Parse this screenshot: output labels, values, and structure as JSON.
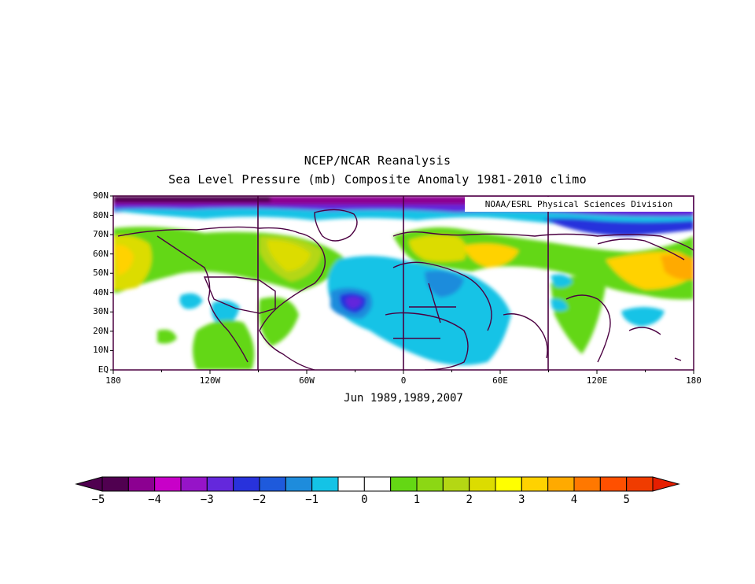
{
  "title": "NCEP/NCAR Reanalysis",
  "subtitle": "Sea Level Pressure (mb) Composite Anomaly 1981-2010 climo",
  "period_label": "Jun 1989,1989,2007",
  "credit": "NOAA/ESRL Physical Sciences Division",
  "lat_labels": [
    "90N",
    "80N",
    "70N",
    "60N",
    "50N",
    "40N",
    "30N",
    "20N",
    "10N",
    "EQ"
  ],
  "lon_labels": [
    "180",
    "120W",
    "60W",
    "0",
    "60E",
    "120E",
    "180"
  ],
  "colorbar": {
    "labels": [
      "-5",
      "-4",
      "-3",
      "-2",
      "-1",
      "0",
      "1",
      "2",
      "3",
      "4",
      "5"
    ],
    "colors": [
      "#500050",
      "#8c0091",
      "#c800c8",
      "#9614c8",
      "#6428dc",
      "#2832dc",
      "#1e5adc",
      "#1e8cdc",
      "#14c3e6",
      "#ffffff",
      "#ffffff",
      "#64d714",
      "#8cd714",
      "#b4d714",
      "#dcdc00",
      "#ffff00",
      "#ffd200",
      "#ffaa00",
      "#ff7800",
      "#ff5000",
      "#f03c00"
    ],
    "under_color": "#500050",
    "over_color": "#e61e00"
  },
  "colors": {
    "land_outline": "#4b0041",
    "frame": "#4b0041",
    "meridian": "#4b0041"
  }
}
